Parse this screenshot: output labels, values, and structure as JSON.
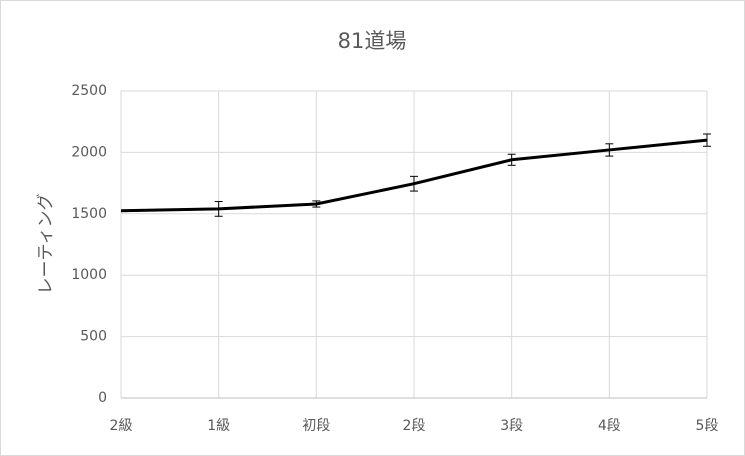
{
  "chart_data": {
    "type": "line",
    "title": "81道場",
    "y_label": "レーティング",
    "categories": [
      "2級",
      "1級",
      "初段",
      "2段",
      "3段",
      "4段",
      "5段"
    ],
    "series": [
      {
        "color": "#000000",
        "values": [
          1525,
          1540,
          1580,
          1745,
          1940,
          2020,
          2100
        ],
        "errors": [
          null,
          60,
          25,
          60,
          45,
          50,
          50
        ]
      }
    ],
    "ylim": [
      0,
      2500
    ],
    "yticks": [
      0,
      500,
      1000,
      1500,
      2000,
      2500
    ],
    "grid": true
  }
}
